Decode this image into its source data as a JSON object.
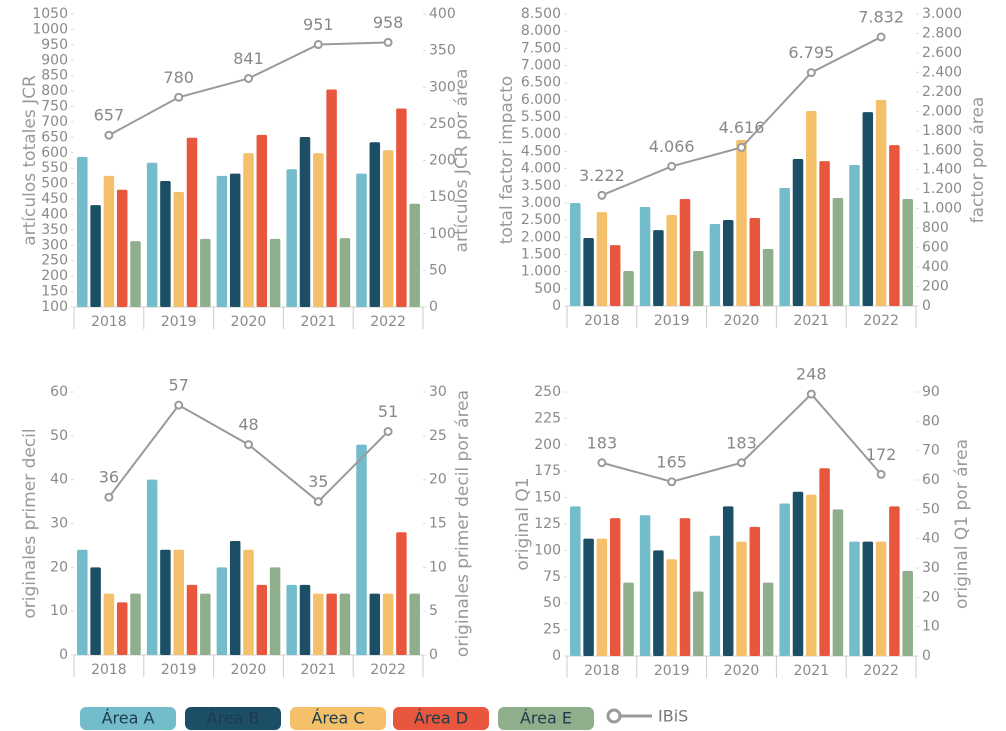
{
  "legend": [
    {
      "name": "Área A",
      "color": "#72bccb"
    },
    {
      "name": "Área B",
      "color": "#1c4f66"
    },
    {
      "name": "Área C",
      "color": "#f4c16a"
    },
    {
      "name": "Área D",
      "color": "#e8573d"
    },
    {
      "name": "Área E",
      "color": "#8fae8b"
    },
    {
      "name": "IBiS",
      "color": "#9a9a9a"
    }
  ],
  "chart_data": [
    {
      "type": "bar",
      "ylabel": "artículos totales JCR",
      "y2label": "artículos JCR por área",
      "categories": [
        "2018",
        "2019",
        "2020",
        "2021",
        "2022"
      ],
      "ylim": [
        100,
        1050
      ],
      "yticks": [
        100,
        150,
        200,
        250,
        300,
        350,
        400,
        450,
        500,
        550,
        600,
        650,
        700,
        750,
        800,
        850,
        900,
        950,
        1000,
        1050
      ],
      "y2lim": [
        0,
        400
      ],
      "y2ticks": [
        0,
        50,
        100,
        150,
        200,
        250,
        300,
        350,
        400
      ],
      "series": [
        {
          "color": "#72bccb",
          "axis": "y2",
          "values": [
            205,
            197,
            179,
            188,
            182
          ]
        },
        {
          "color": "#1c4f66",
          "axis": "y2",
          "values": [
            139,
            172,
            182,
            232,
            225
          ]
        },
        {
          "color": "#f4c16a",
          "axis": "y2",
          "values": [
            179,
            157,
            210,
            210,
            214
          ]
        },
        {
          "color": "#e8573d",
          "axis": "y2",
          "values": [
            160,
            231,
            235,
            297,
            271
          ]
        },
        {
          "color": "#8fae8b",
          "axis": "y2",
          "values": [
            90,
            93,
            93,
            94,
            141
          ]
        },
        {
          "type": "line",
          "color": "#9a9a9a",
          "axis": "y",
          "values": [
            657,
            780,
            841,
            951,
            958
          ]
        }
      ]
    },
    {
      "type": "bar",
      "ylabel": "total factor impacto",
      "y2label": "factor por área",
      "categories": [
        "2018",
        "2019",
        "2020",
        "2021",
        "2022"
      ],
      "ylim": [
        0,
        8500
      ],
      "yticks": [
        0,
        500,
        {
          "value": 1000,
          "label": "1.000"
        },
        {
          "value": 1500,
          "label": "1.500"
        },
        {
          "value": 2000,
          "label": "2.000"
        },
        {
          "value": 2500,
          "label": "2.500"
        },
        {
          "value": 3000,
          "label": "3.000"
        },
        {
          "value": 3500,
          "label": "3.500"
        },
        {
          "value": 4000,
          "label": "4.000"
        },
        {
          "value": 4500,
          "label": "4.500"
        },
        {
          "value": 5000,
          "label": "5.000"
        },
        {
          "value": 5500,
          "label": "5.500"
        },
        {
          "value": 6000,
          "label": "6.000"
        },
        {
          "value": 6500,
          "label": "6.500"
        },
        {
          "value": 7000,
          "label": "7.000"
        },
        {
          "value": 7500,
          "label": "7.500"
        },
        {
          "value": 8000,
          "label": "8.000"
        },
        {
          "value": 8500,
          "label": "8.500"
        }
      ],
      "y2lim": [
        0,
        3000
      ],
      "y2ticks": [
        0,
        200,
        400,
        600,
        800,
        {
          "value": 1000,
          "label": "1.000"
        },
        {
          "value": 1200,
          "label": "1.200"
        },
        {
          "value": 1400,
          "label": "1.400"
        },
        {
          "value": 1600,
          "label": "1.600"
        },
        {
          "value": 1800,
          "label": "1.800"
        },
        {
          "value": 2000,
          "label": "2.000"
        },
        {
          "value": 2200,
          "label": "2.200"
        },
        {
          "value": 2400,
          "label": "2.400"
        },
        {
          "value": 2600,
          "label": "2.600"
        },
        {
          "value": 2800,
          "label": "2.800"
        },
        {
          "value": 3000,
          "label": "3.000"
        }
      ],
      "series": [
        {
          "color": "#72bccb",
          "axis": "y2",
          "values": [
            1058,
            1017,
            842,
            1212,
            1448
          ]
        },
        {
          "color": "#1c4f66",
          "axis": "y2",
          "values": [
            698,
            780,
            883,
            1510,
            1992
          ]
        },
        {
          "color": "#f4c16a",
          "axis": "y2",
          "values": [
            965,
            935,
            1705,
            2003,
            2116
          ]
        },
        {
          "color": "#e8573d",
          "axis": "y2",
          "values": [
            626,
            1099,
            904,
            1489,
            1653
          ]
        },
        {
          "color": "#8fae8b",
          "axis": "y2",
          "values": [
            359,
            565,
            585,
            1109,
            1099
          ]
        },
        {
          "type": "line",
          "color": "#9a9a9a",
          "axis": "y",
          "values": [
            3222,
            4066,
            4616,
            6795,
            7832
          ],
          "value_labels": [
            "3.222",
            "4.066",
            "4.616",
            "6.795",
            "7.832"
          ]
        }
      ]
    },
    {
      "type": "bar",
      "ylabel": "originales primer decil",
      "y2label": "originales primer decil por área",
      "categories": [
        "2018",
        "2019",
        "2020",
        "2021",
        "2022"
      ],
      "ylim": [
        0,
        60
      ],
      "yticks": [
        0,
        10,
        20,
        30,
        40,
        50,
        60
      ],
      "y2lim": [
        0,
        30
      ],
      "y2ticks": [
        0,
        5,
        10,
        15,
        20,
        25,
        30
      ],
      "series": [
        {
          "color": "#72bccb",
          "axis": "y2",
          "values": [
            12,
            20,
            10,
            8,
            24
          ]
        },
        {
          "color": "#1c4f66",
          "axis": "y2",
          "values": [
            10,
            12,
            13,
            8,
            7
          ]
        },
        {
          "color": "#f4c16a",
          "axis": "y2",
          "values": [
            7,
            12,
            12,
            7,
            7
          ]
        },
        {
          "color": "#e8573d",
          "axis": "y2",
          "values": [
            6,
            8,
            8,
            7,
            14
          ]
        },
        {
          "color": "#8fae8b",
          "axis": "y2",
          "values": [
            7,
            7,
            10,
            7,
            7
          ]
        },
        {
          "type": "line",
          "color": "#9a9a9a",
          "axis": "y",
          "values": [
            36,
            57,
            48,
            35,
            51
          ]
        }
      ]
    },
    {
      "type": "bar",
      "ylabel": "original Q1",
      "y2label": "original Q1 por área",
      "categories": [
        "2018",
        "2019",
        "2020",
        "2021",
        "2022"
      ],
      "ylim": [
        0,
        250
      ],
      "yticks": [
        0,
        25,
        50,
        75,
        100,
        125,
        150,
        175,
        200,
        225,
        250
      ],
      "y2lim": [
        0,
        90
      ],
      "y2ticks": [
        0,
        10,
        20,
        30,
        40,
        50,
        60,
        70,
        80,
        90
      ],
      "series": [
        {
          "color": "#72bccb",
          "axis": "y2",
          "values": [
            51,
            48,
            41,
            52,
            39
          ]
        },
        {
          "color": "#1c4f66",
          "axis": "y2",
          "values": [
            40,
            36,
            51,
            56,
            39
          ]
        },
        {
          "color": "#f4c16a",
          "axis": "y2",
          "values": [
            40,
            33,
            39,
            55,
            39
          ]
        },
        {
          "color": "#e8573d",
          "axis": "y2",
          "values": [
            47,
            47,
            44,
            64,
            51
          ]
        },
        {
          "color": "#8fae8b",
          "axis": "y2",
          "values": [
            25,
            22,
            25,
            50,
            29
          ]
        },
        {
          "type": "line",
          "color": "#9a9a9a",
          "axis": "y",
          "values": [
            183,
            165,
            183,
            248,
            172
          ]
        }
      ]
    }
  ]
}
